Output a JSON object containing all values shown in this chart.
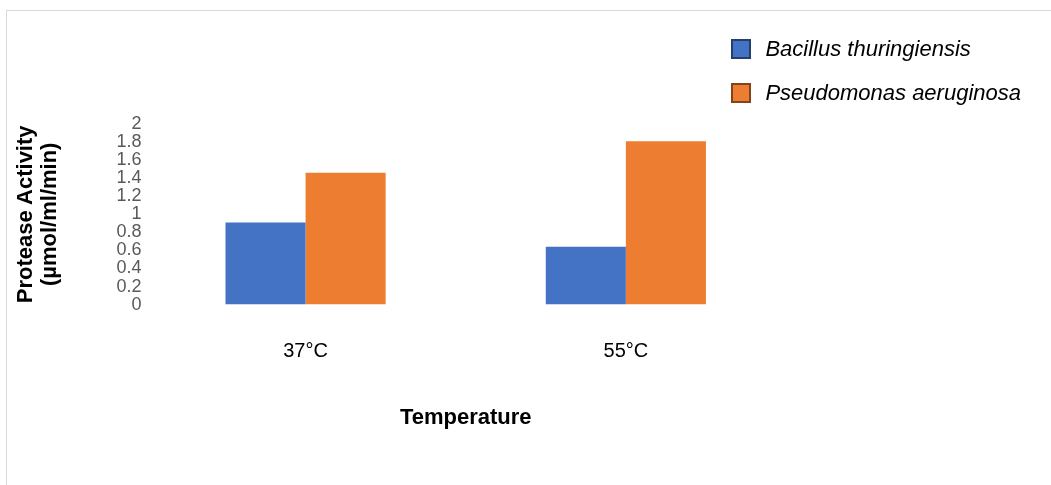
{
  "chart_data": {
    "type": "bar",
    "xlabel": "Temperature",
    "ylabel": "Protease Activity\n(µmol/ml/min)",
    "categories": [
      "37°C",
      "55°C"
    ],
    "series": [
      {
        "name": "Bacillus thuringiensis",
        "color": "#4472c4",
        "values": [
          0.91,
          0.64
        ]
      },
      {
        "name": "Pseudomonas aeruginosa",
        "color": "#ed7d31",
        "values": [
          1.46,
          1.81
        ]
      }
    ],
    "ylim": [
      0,
      2
    ],
    "yticks": [
      0,
      0.2,
      0.4,
      0.6,
      0.8,
      1,
      1.2,
      1.4,
      1.6,
      1.8,
      2
    ],
    "grid": false,
    "legend": "top right"
  }
}
